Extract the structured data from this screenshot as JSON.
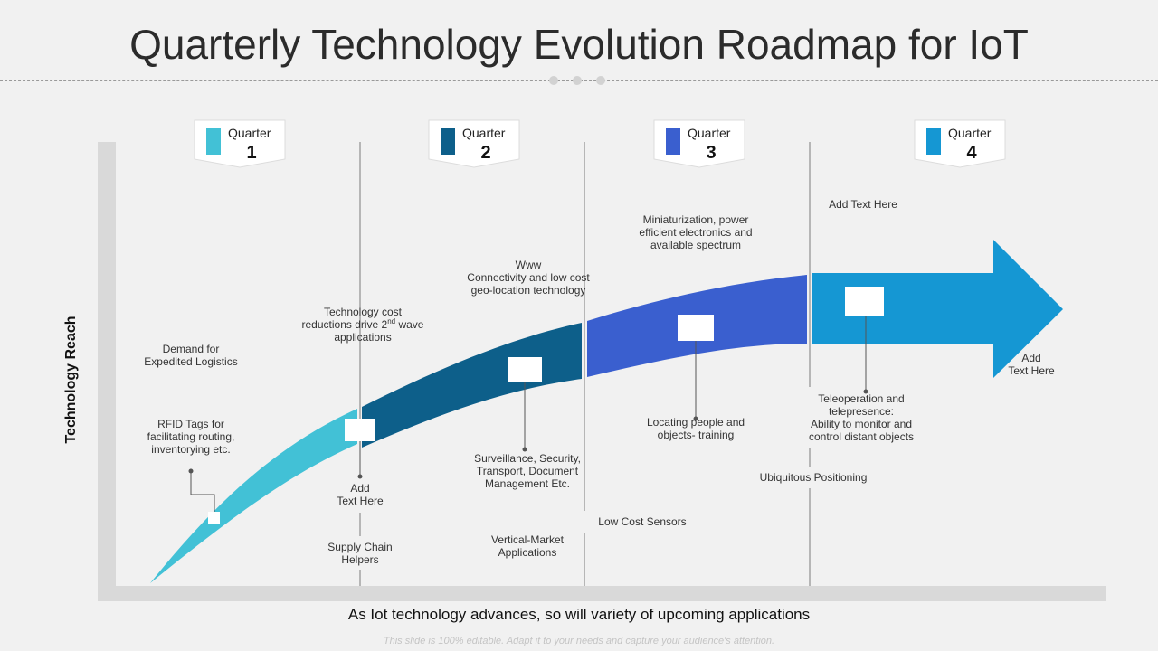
{
  "title": "Quarterly Technology Evolution Roadmap for IoT",
  "y_axis_label": "Technology Reach",
  "x_axis_label": "As Iot technology advances, so will variety of upcoming applications",
  "footer": "This slide is 100% editable. Adapt it to your needs and capture your audience's attention.",
  "colors": {
    "q1": "#42c1d6",
    "q2": "#0d5f8a",
    "q3": "#3a5fcf",
    "q4": "#1597d3",
    "axis": "#d9d9d9",
    "background": "#f1f1f1"
  },
  "quarters": [
    {
      "word": "Quarter",
      "number": "1"
    },
    {
      "word": "Quarter",
      "number": "2"
    },
    {
      "word": "Quarter",
      "number": "3"
    },
    {
      "word": "Quarter",
      "number": "4"
    }
  ],
  "labels": {
    "demand_logistics": "Demand for\nExpedited Logistics",
    "rfid_tags": "RFID Tags for\nfacilitating routing,\ninventorying etc.",
    "tech_cost_before_sup": "Technology cost\nreductions drive 2",
    "tech_cost_sup": "nd",
    "tech_cost_after_sup": " wave\napplications",
    "q2_add_text": "Add\nText Here",
    "supply_chain": "Supply Chain\nHelpers",
    "www_connectivity": "Www\nConnectivity and low cost\ngeo-location technology",
    "surveillance": "Surveillance, Security,\nTransport, Document\nManagement Etc.",
    "vertical_market": "Vertical-Market\nApplications",
    "low_cost_sensors": "Low Cost Sensors",
    "miniaturization": "Miniaturization, power\nefficient electronics and\navailable spectrum",
    "locating_people": "Locating people and\nobjects- training",
    "q4_add_text_top": "Add Text Here",
    "teleoperation": "Teleoperation and\ntelepresence:\nAbility to monitor and\ncontrol distant objects",
    "ubiquitous": "Ubiquitous Positioning",
    "arrow_add_text": "Add\nText Here"
  }
}
